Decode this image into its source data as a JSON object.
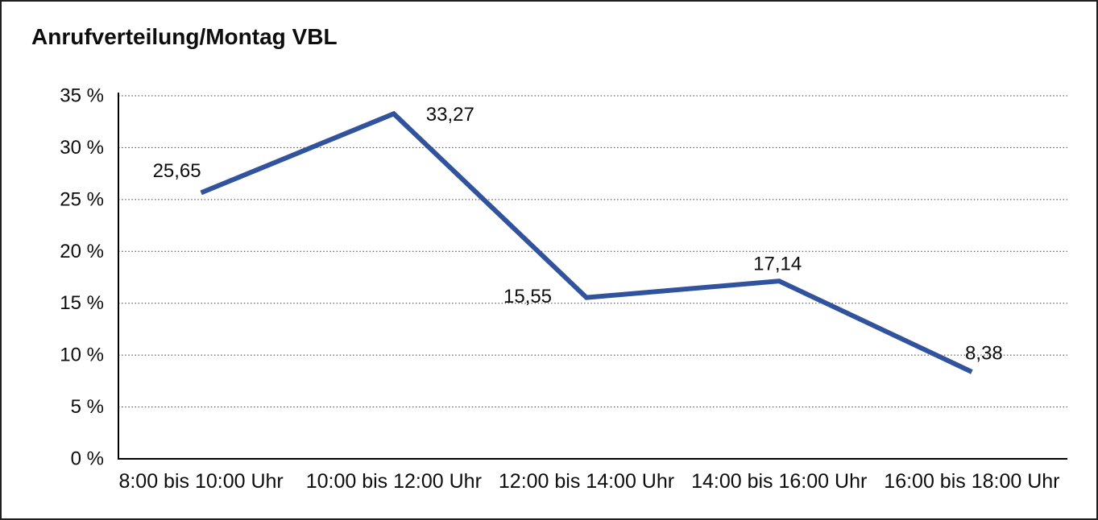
{
  "title": "Anrufverteilung/Montag VBL",
  "chart_data": {
    "type": "line",
    "title": "Anrufverteilung/Montag VBL",
    "categories": [
      "8:00 bis 10:00 Uhr",
      "10:00 bis 12:00 Uhr",
      "12:00 bis 14:00 Uhr",
      "14:00 bis 16:00 Uhr",
      "16:00 bis 18:00 Uhr"
    ],
    "values": [
      25.65,
      33.27,
      15.55,
      17.14,
      8.38
    ],
    "display_values": [
      "25,65",
      "33,27",
      "15,55",
      "17,14",
      "8,38"
    ],
    "xlabel": "",
    "ylabel": "",
    "ylim": [
      0,
      35
    ],
    "y_tick_step": 5,
    "y_tick_labels": [
      "0 %",
      "5 %",
      "10 %",
      "15 %",
      "20 %",
      "25 %",
      "30 %",
      "35 %"
    ],
    "grid": "horizontal-dotted",
    "legend": "none",
    "line_color": "#31529D",
    "axis_color": "#000000",
    "text_color": "#0d0d0d"
  }
}
